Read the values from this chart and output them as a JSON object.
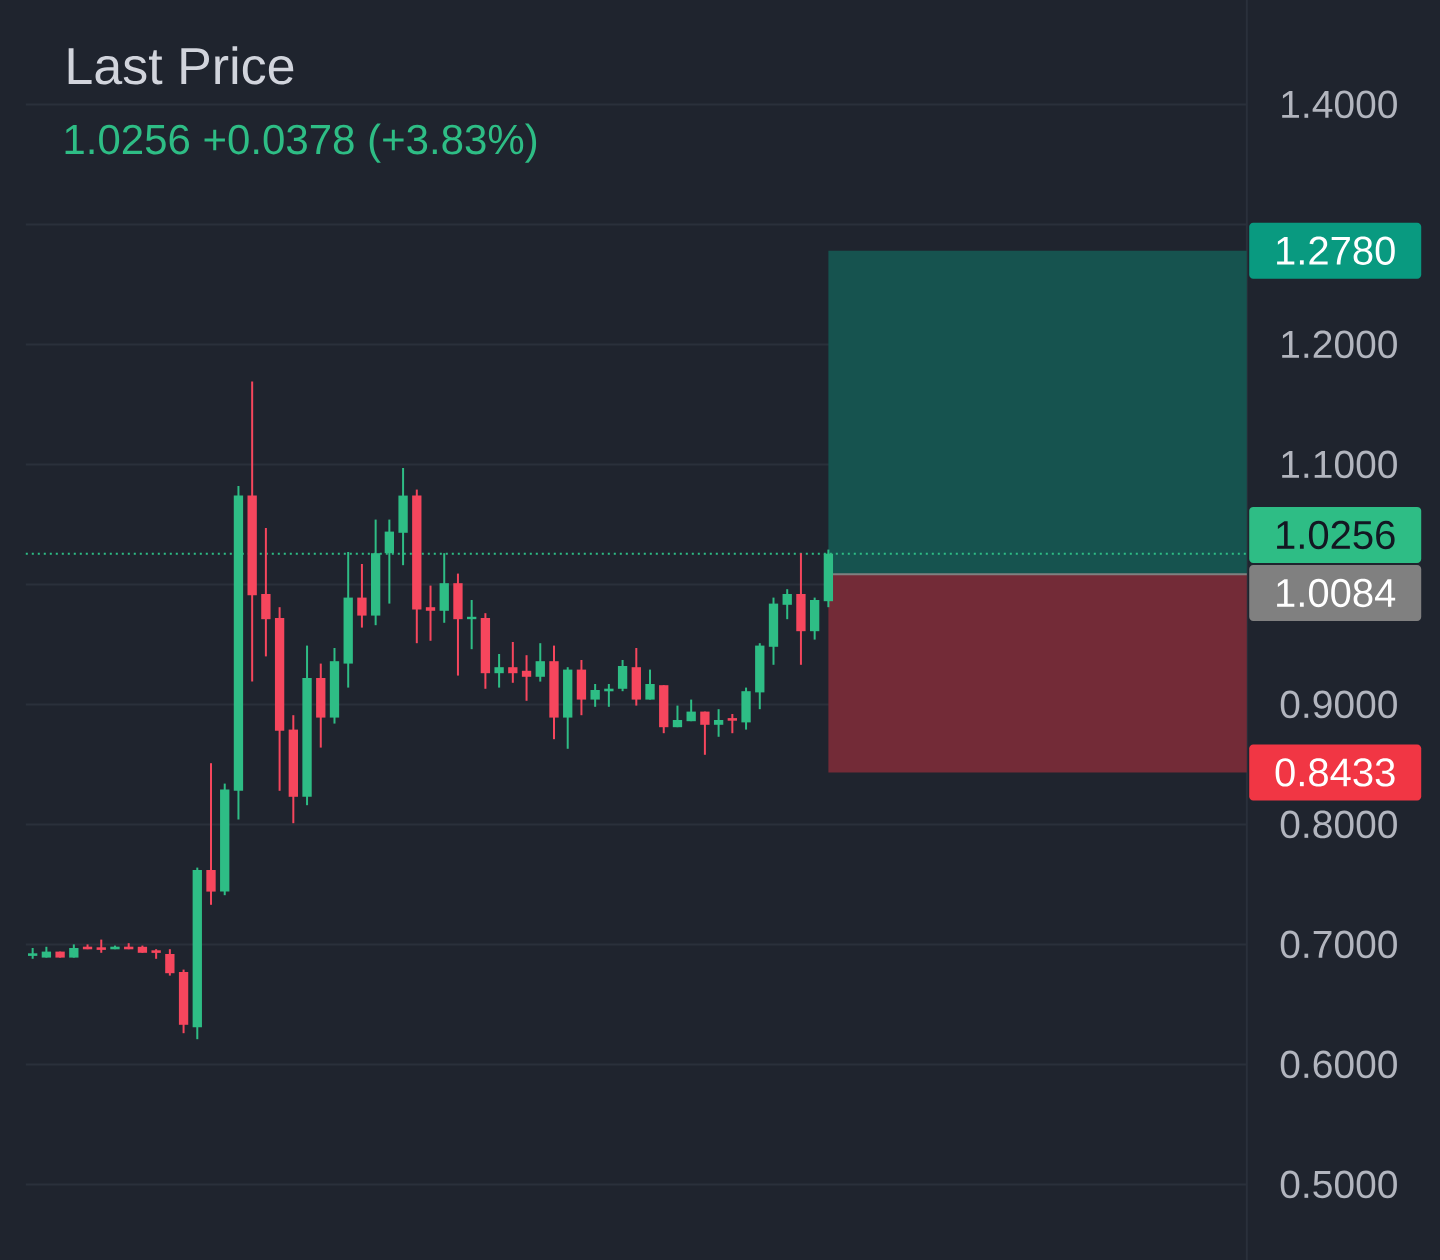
{
  "chart_data": {
    "type": "candlestick",
    "title": "Last Price",
    "subtitle": "1.0256  +0.0378 (+3.83%)",
    "categories": [
      null,
      null,
      null,
      null,
      null,
      null,
      null,
      null,
      null,
      null,
      null,
      null,
      null,
      null,
      null,
      null,
      null,
      null,
      null,
      null,
      null,
      null,
      null,
      null,
      null,
      null,
      null,
      null,
      null,
      null,
      null,
      null,
      null,
      null,
      null,
      null,
      null,
      null,
      null,
      null,
      null,
      null,
      null,
      null,
      null,
      null,
      null,
      null,
      null,
      null,
      null,
      null,
      null,
      null,
      null,
      null,
      null,
      null,
      null,
      null,
      null,
      null,
      null,
      null,
      null,
      null,
      null,
      null,
      null,
      null,
      null,
      null,
      null,
      null,
      null,
      null,
      null,
      null,
      null,
      null,
      null,
      null,
      null,
      null,
      null,
      null,
      null,
      null,
      null
    ],
    "ohlc": [
      [
        0.691,
        0.697,
        0.688,
        0.692
      ],
      [
        0.689,
        0.698,
        0.689,
        0.694
      ],
      [
        0.694,
        0.694,
        0.689,
        0.689
      ],
      [
        0.689,
        0.7,
        0.689,
        0.697
      ],
      [
        0.698,
        0.7,
        0.696,
        0.696
      ],
      [
        0.697,
        0.704,
        0.693,
        0.696
      ],
      [
        0.696,
        0.699,
        0.696,
        0.698
      ],
      [
        0.698,
        0.701,
        0.696,
        0.696
      ],
      [
        0.698,
        0.699,
        0.693,
        0.693
      ],
      [
        0.695,
        0.696,
        0.688,
        0.693
      ],
      [
        0.692,
        0.696,
        0.674,
        0.676
      ],
      [
        0.677,
        0.679,
        0.626,
        0.633
      ],
      [
        0.631,
        0.764,
        0.621,
        0.762
      ],
      [
        0.762,
        0.851,
        0.733,
        0.744
      ],
      [
        0.744,
        0.834,
        0.741,
        0.829
      ],
      [
        0.828,
        1.082,
        0.804,
        1.074
      ],
      [
        1.074,
        1.169,
        0.919,
        0.991
      ],
      [
        0.992,
        1.047,
        0.94,
        0.971
      ],
      [
        0.972,
        0.981,
        0.828,
        0.878
      ],
      [
        0.879,
        0.891,
        0.801,
        0.823
      ],
      [
        0.823,
        0.949,
        0.816,
        0.922
      ],
      [
        0.922,
        0.934,
        0.864,
        0.889
      ],
      [
        0.889,
        0.947,
        0.884,
        0.936
      ],
      [
        0.934,
        1.027,
        0.914,
        0.989
      ],
      [
        0.989,
        1.017,
        0.964,
        0.974
      ],
      [
        0.974,
        1.054,
        0.966,
        1.026
      ],
      [
        1.026,
        1.054,
        0.984,
        1.044
      ],
      [
        1.043,
        1.097,
        1.016,
        1.074
      ],
      [
        1.074,
        1.079,
        0.951,
        0.979
      ],
      [
        0.981,
        0.999,
        0.953,
        0.978
      ],
      [
        0.978,
        1.026,
        0.968,
        1.001
      ],
      [
        1.001,
        1.009,
        0.924,
        0.971
      ],
      [
        0.971,
        0.987,
        0.946,
        0.973
      ],
      [
        0.972,
        0.976,
        0.913,
        0.926
      ],
      [
        0.926,
        0.942,
        0.914,
        0.931
      ],
      [
        0.931,
        0.952,
        0.918,
        0.926
      ],
      [
        0.928,
        0.941,
        0.903,
        0.923
      ],
      [
        0.923,
        0.951,
        0.919,
        0.936
      ],
      [
        0.936,
        0.949,
        0.871,
        0.889
      ],
      [
        0.889,
        0.931,
        0.863,
        0.929
      ],
      [
        0.929,
        0.937,
        0.891,
        0.904
      ],
      [
        0.904,
        0.917,
        0.898,
        0.912
      ],
      [
        0.911,
        0.917,
        0.898,
        0.913
      ],
      [
        0.913,
        0.937,
        0.911,
        0.932
      ],
      [
        0.931,
        0.947,
        0.899,
        0.904
      ],
      [
        0.904,
        0.929,
        0.904,
        0.917
      ],
      [
        0.916,
        0.916,
        0.876,
        0.881
      ],
      [
        0.881,
        0.899,
        0.881,
        0.887
      ],
      [
        0.886,
        0.904,
        0.886,
        0.894
      ],
      [
        0.894,
        0.894,
        0.858,
        0.883
      ],
      [
        0.883,
        0.896,
        0.873,
        0.887
      ],
      [
        0.888,
        0.892,
        0.876,
        0.887
      ],
      [
        0.885,
        0.914,
        0.879,
        0.911
      ],
      [
        0.91,
        0.951,
        0.896,
        0.949
      ],
      [
        0.948,
        0.989,
        0.933,
        0.984
      ],
      [
        0.983,
        0.996,
        0.971,
        0.992
      ],
      [
        0.992,
        1.026,
        0.933,
        0.961
      ],
      [
        0.961,
        0.989,
        0.954,
        0.987
      ],
      [
        0.986,
        1.029,
        0.981,
        1.0256
      ],
      null,
      null,
      null,
      null,
      null,
      null,
      null,
      null,
      null,
      null,
      null,
      null,
      null,
      null,
      null,
      null,
      null,
      null,
      null,
      null,
      null,
      null,
      null,
      null,
      null,
      null,
      null,
      null,
      null,
      null
    ],
    "colors": [
      "#2ebd85",
      "#2ebd85",
      "#f6465d",
      "#2ebd85",
      "#f6465d",
      "#f6465d",
      "#2ebd85",
      "#f6465d",
      "#f6465d",
      "#f6465d",
      "#f6465d",
      "#f6465d",
      "#2ebd85",
      "#f6465d",
      "#2ebd85",
      "#2ebd85",
      "#f6465d",
      "#f6465d",
      "#f6465d",
      "#f6465d",
      "#2ebd85",
      "#f6465d",
      "#2ebd85",
      "#2ebd85",
      "#f6465d",
      "#2ebd85",
      "#2ebd85",
      "#2ebd85",
      "#f6465d",
      "#f6465d",
      "#2ebd85",
      "#f6465d",
      "#2ebd85",
      "#f6465d",
      "#2ebd85",
      "#f6465d",
      "#f6465d",
      "#2ebd85",
      "#f6465d",
      "#2ebd85",
      "#f6465d",
      "#2ebd85",
      "#2ebd85",
      "#2ebd85",
      "#f6465d",
      "#2ebd85",
      "#f6465d",
      "#2ebd85",
      "#2ebd85",
      "#f6465d",
      "#2ebd85",
      "#f6465d",
      "#2ebd85",
      "#2ebd85",
      "#2ebd85",
      "#2ebd85",
      "#f6465d",
      "#2ebd85",
      "#2ebd85",
      null,
      null,
      null,
      null,
      null,
      null,
      null,
      null,
      null,
      null,
      null,
      null,
      null,
      null,
      null,
      null,
      null,
      null,
      null,
      null,
      null,
      null,
      null,
      null,
      null,
      null,
      null,
      null,
      null,
      null
    ],
    "ylim": [
      0.437,
      1.487
    ],
    "yticks": [
      {
        "value": 0.5,
        "label": "0.5000"
      },
      {
        "value": 0.6,
        "label": "0.6000"
      },
      {
        "value": 0.7,
        "label": "0.7000"
      },
      {
        "value": 0.8,
        "label": "0.8000"
      },
      {
        "value": 0.9,
        "label": "0.9000"
      },
      {
        "value": 1.0,
        "label": null
      },
      {
        "value": 1.1,
        "label": "1.1000"
      },
      {
        "value": 1.2,
        "label": "1.2000"
      },
      {
        "value": 1.3,
        "label": null
      },
      {
        "value": 1.4,
        "label": "1.4000"
      }
    ],
    "grid": "y",
    "tick_labels": "y",
    "ref_lines": [
      {
        "axis": "y",
        "value": 1.0256,
        "label": "1.0256",
        "color": "#2ebd85",
        "line_style": "dotted"
      },
      {
        "axis": "y",
        "value": 1.0084,
        "label": "1.0084",
        "color": "#808080",
        "line_style": "solid"
      }
    ],
    "bands": [
      {
        "axis": "y",
        "from": 1.0084,
        "to": 1.278,
        "label": "1.2780",
        "color": "#16534f"
      },
      {
        "axis": "y",
        "from": 1.0084,
        "to": 0.8433,
        "label": "0.8433",
        "color": "#732b37"
      }
    ]
  }
}
